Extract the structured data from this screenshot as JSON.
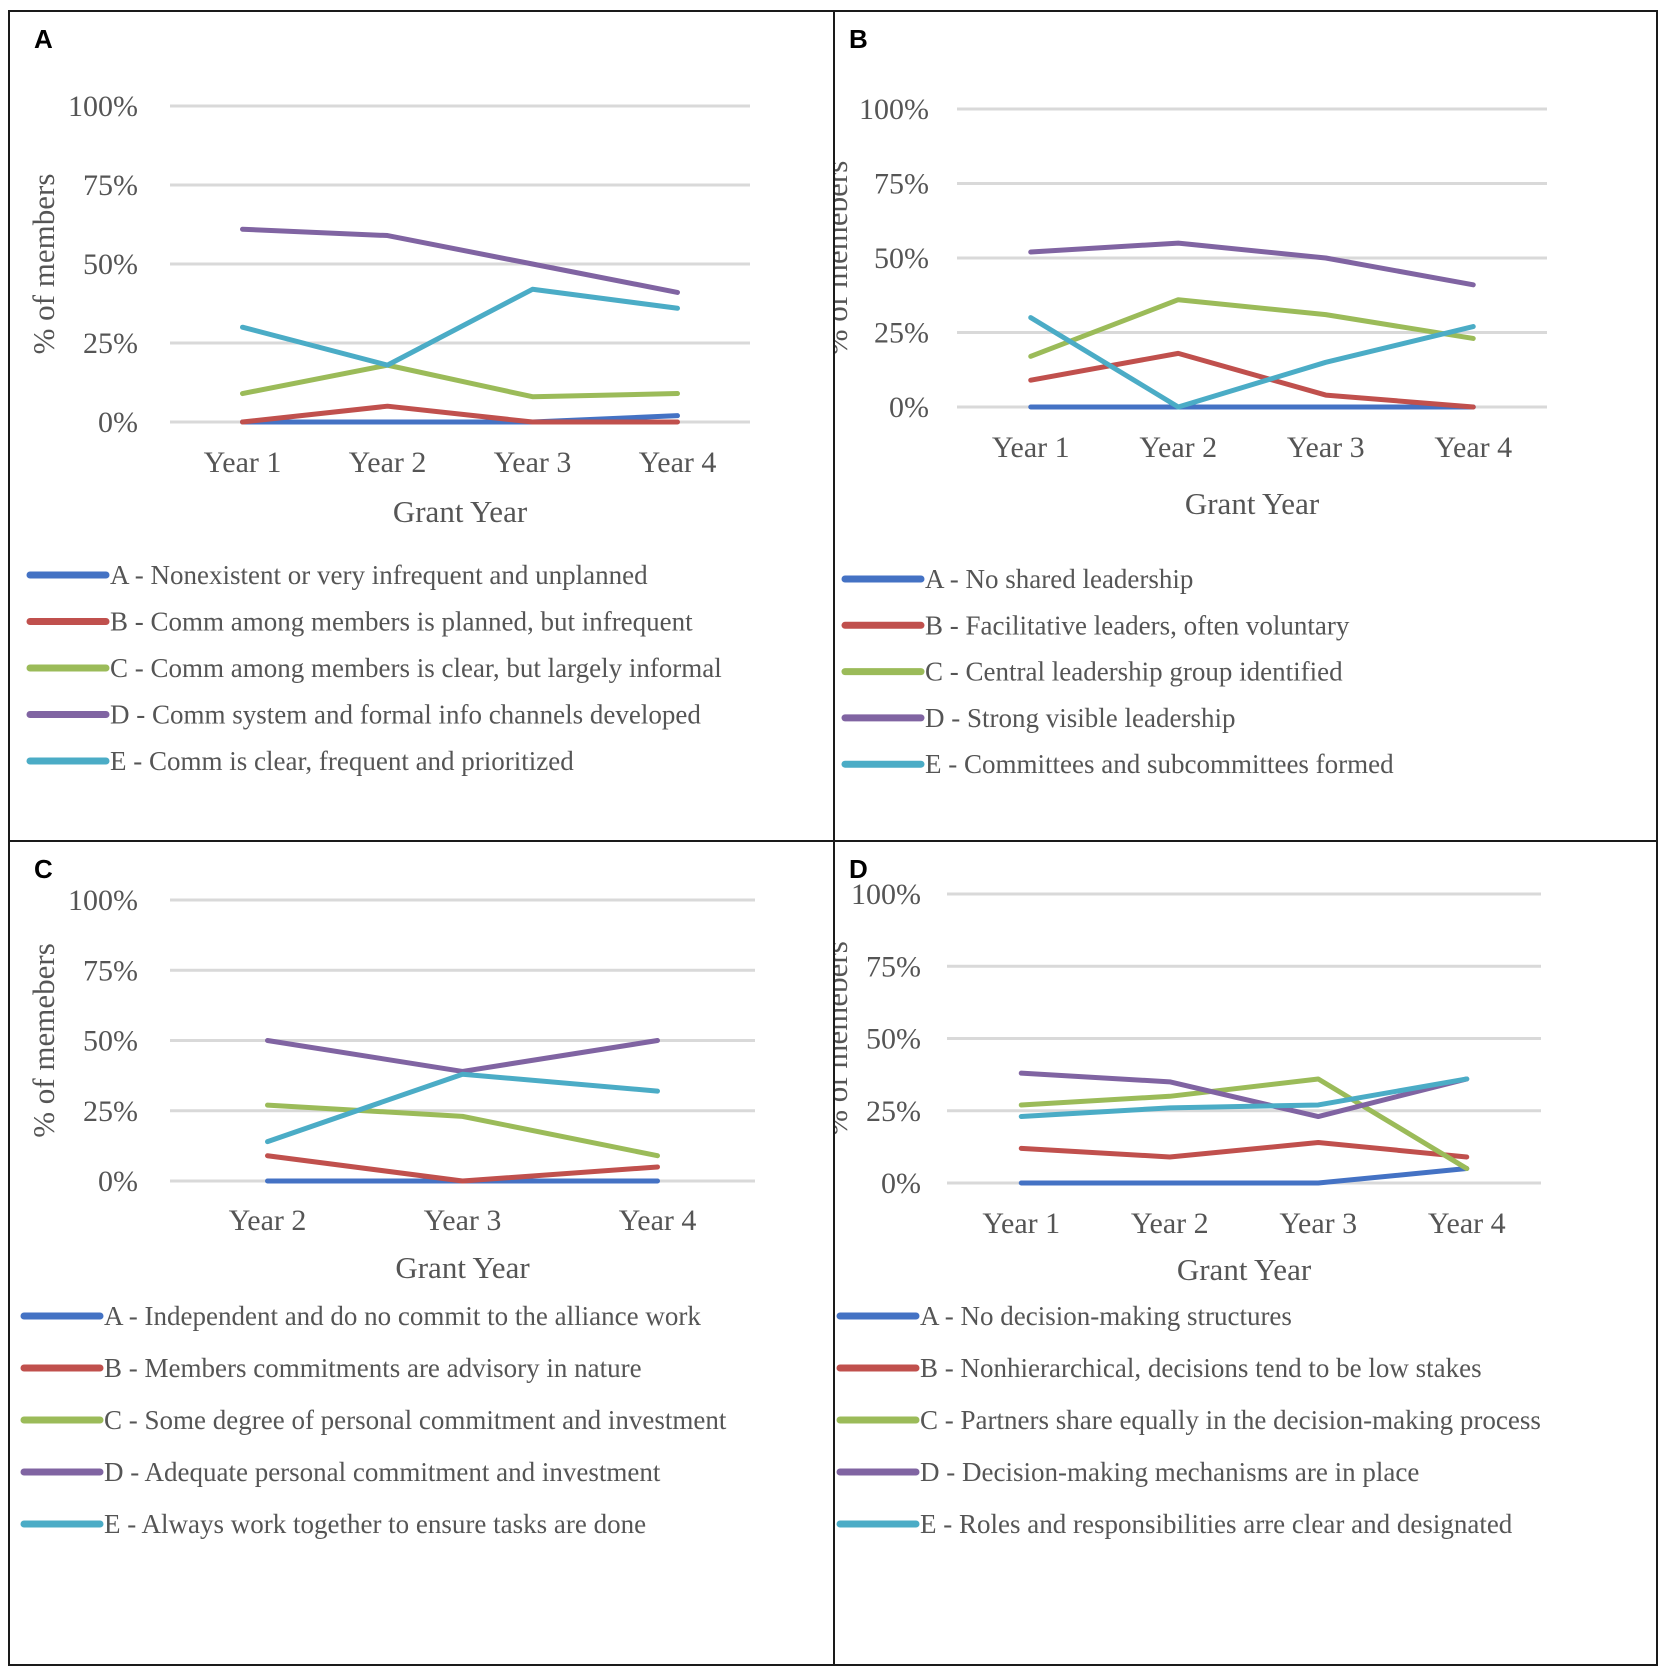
{
  "colors": {
    "A": "#4472C4",
    "B": "#C0504D",
    "C": "#9BBB59",
    "D": "#8064A2",
    "E": "#4BACC6"
  },
  "chart_data": [
    {
      "panel": "A",
      "type": "line",
      "title": "",
      "xlabel": "Grant Year",
      "ylabel": "% of members",
      "ylim": [
        0,
        100
      ],
      "yticks": [
        "0%",
        "25%",
        "50%",
        "75%",
        "100%"
      ],
      "categories": [
        "Year 1",
        "Year 2",
        "Year 3",
        "Year 4"
      ],
      "series": [
        {
          "key": "A",
          "name": "A - Nonexistent or very infrequent and unplanned",
          "values": [
            0,
            0,
            0,
            2
          ]
        },
        {
          "key": "B",
          "name": "B - Comm among members is planned, but infrequent",
          "values": [
            0,
            5,
            0,
            0
          ]
        },
        {
          "key": "C",
          "name": "C - Comm among members is clear, but largely informal",
          "values": [
            9,
            18,
            8,
            9
          ]
        },
        {
          "key": "D",
          "name": "D - Comm system and formal info channels developed",
          "values": [
            61,
            59,
            50,
            41
          ]
        },
        {
          "key": "E",
          "name": "E - Comm is clear, frequent and prioritized",
          "values": [
            30,
            18,
            42,
            36
          ]
        }
      ]
    },
    {
      "panel": "B",
      "type": "line",
      "title": "",
      "xlabel": "Grant Year",
      "ylabel": "% of memebers",
      "ylim": [
        0,
        100
      ],
      "yticks": [
        "0%",
        "25%",
        "50%",
        "75%",
        "100%"
      ],
      "categories": [
        "Year 1",
        "Year 2",
        "Year 3",
        "Year 4"
      ],
      "series": [
        {
          "key": "A",
          "name": "A - No shared leadership",
          "values": [
            0,
            0,
            0,
            0
          ]
        },
        {
          "key": "B",
          "name": "B - Facilitative leaders, often voluntary",
          "values": [
            9,
            18,
            4,
            0
          ]
        },
        {
          "key": "C",
          "name": "C - Central leadership group identified",
          "values": [
            17,
            36,
            31,
            23
          ]
        },
        {
          "key": "D",
          "name": "D - Strong visible leadership",
          "values": [
            52,
            55,
            50,
            41
          ]
        },
        {
          "key": "E",
          "name": "E - Committees and subcommittees formed",
          "values": [
            30,
            0,
            15,
            27
          ]
        }
      ]
    },
    {
      "panel": "C",
      "type": "line",
      "title": "",
      "xlabel": "Grant Year",
      "ylabel": "% of memebers",
      "ylim": [
        0,
        100
      ],
      "yticks": [
        "0%",
        "25%",
        "50%",
        "75%",
        "100%"
      ],
      "categories": [
        "Year 2",
        "Year 3",
        "Year 4"
      ],
      "series": [
        {
          "key": "A",
          "name": "A - Independent and do no commit to the alliance work",
          "values": [
            0,
            0,
            0
          ]
        },
        {
          "key": "B",
          "name": "B - Members commitments are advisory in nature",
          "values": [
            9,
            0,
            5
          ]
        },
        {
          "key": "C",
          "name": "C - Some degree of personal commitment and investment",
          "values": [
            27,
            23,
            9
          ]
        },
        {
          "key": "D",
          "name": "D - Adequate personal commitment and investment",
          "values": [
            50,
            39,
            50
          ]
        },
        {
          "key": "E",
          "name": "E - Always work together to ensure tasks are done",
          "values": [
            14,
            38,
            32
          ]
        }
      ]
    },
    {
      "panel": "D",
      "type": "line",
      "title": "",
      "xlabel": "Grant Year",
      "ylabel": "% of memebers",
      "ylim": [
        0,
        100
      ],
      "yticks": [
        "0%",
        "25%",
        "50%",
        "75%",
        "100%"
      ],
      "categories": [
        "Year 1",
        "Year 2",
        "Year 3",
        "Year 4"
      ],
      "series": [
        {
          "key": "A",
          "name": "A - No decision-making structures",
          "values": [
            0,
            0,
            0,
            5
          ]
        },
        {
          "key": "B",
          "name": "B - Nonhierarchical, decisions tend to be low stakes",
          "values": [
            12,
            9,
            14,
            9
          ]
        },
        {
          "key": "C",
          "name": "C - Partners share equally in the decision-making process",
          "values": [
            27,
            30,
            36,
            5
          ]
        },
        {
          "key": "D",
          "name": "D - Decision-making mechanisms are in place",
          "values": [
            38,
            35,
            23,
            36
          ]
        },
        {
          "key": "E",
          "name": "E - Roles and responsibilities arre clear and designated",
          "values": [
            23,
            26,
            27,
            36
          ]
        }
      ]
    }
  ]
}
